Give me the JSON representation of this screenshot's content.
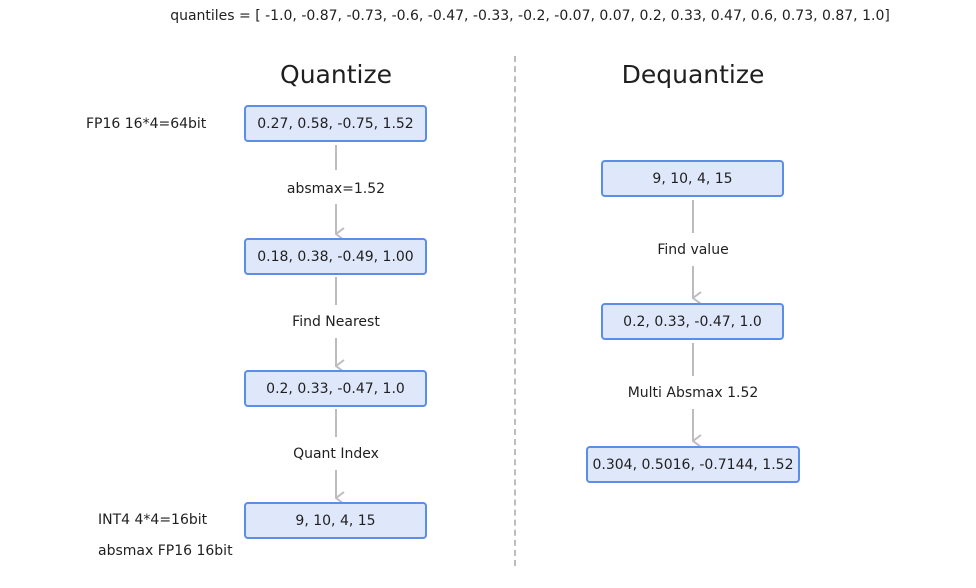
{
  "header": {
    "quantiles": "quantiles = [ -1.0, -0.87, -0.73, -0.6, -0.47, -0.33, -0.2, -0.07, 0.07, 0.2, 0.33, 0.47, 0.6, 0.73, 0.87, 1.0]"
  },
  "quantize": {
    "title": "Quantize",
    "input_label": "FP16 16*4=64bit",
    "output_label": "INT4 4*4=16bit",
    "extra_label": "absmax FP16 16bit",
    "boxes": [
      "0.27, 0.58, -0.75, 1.52",
      "0.18, 0.38, -0.49, 1.00",
      "0.2, 0.33, -0.47, 1.0",
      "9, 10, 4, 15"
    ],
    "steps": [
      "absmax=1.52",
      "Find Nearest",
      "Quant Index"
    ]
  },
  "dequantize": {
    "title": "Dequantize",
    "boxes": [
      "9, 10, 4, 15",
      "0.2, 0.33, -0.47, 1.0",
      "0.304, 0.5016, -0.7144, 1.52"
    ],
    "steps": [
      "Find value",
      "Multi Absmax 1.52"
    ]
  },
  "colors": {
    "box_fill": "#dfe8fb",
    "box_border": "#5b8ee8",
    "arrow": "#bdbdbd",
    "divider": "#bdbdbd"
  }
}
